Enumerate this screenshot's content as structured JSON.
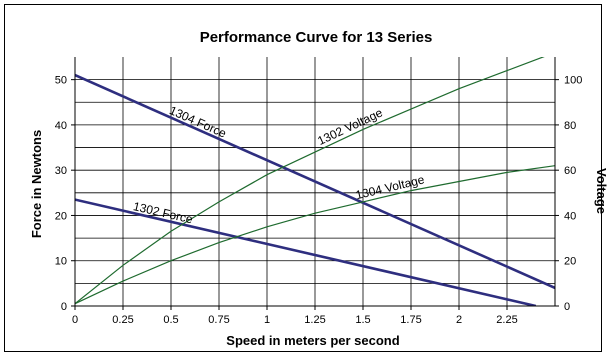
{
  "chart_data": {
    "type": "line",
    "title": "Performance Curve for 13 Series",
    "xlabel": "Speed in meters per second",
    "ylabel": "Force in Newtons",
    "y2label": "Voltage",
    "xlim": [
      0,
      2.5
    ],
    "ylim": [
      0,
      55
    ],
    "y2lim": [
      0,
      110
    ],
    "x_ticks": [
      "0",
      "0.25",
      "0.5",
      "0.75",
      "1",
      "1.25",
      "1.5",
      "1.75",
      "2",
      "2.25"
    ],
    "y_ticks": [
      "0",
      "10",
      "20",
      "30",
      "40",
      "50"
    ],
    "y2_ticks": [
      "0",
      "20",
      "40",
      "60",
      "80",
      "100"
    ],
    "grid": true,
    "legend": "none",
    "colors": {
      "force": "#2e2e7f",
      "voltage": "#1f6b2f",
      "grid": "#000000"
    },
    "series": [
      {
        "name": "1304 Force",
        "axis": "left",
        "x": [
          0,
          2.5
        ],
        "y": [
          51,
          4
        ]
      },
      {
        "name": "1302 Force",
        "axis": "left",
        "x": [
          0,
          2.4
        ],
        "y": [
          23.5,
          0
        ]
      },
      {
        "name": "1302 Voltage",
        "axis": "right",
        "x": [
          0,
          0.25,
          0.5,
          0.75,
          1,
          1.25,
          1.5,
          1.75,
          2,
          2.25,
          2.5
        ],
        "y": [
          1,
          18,
          33,
          46,
          58,
          68,
          78,
          87,
          96,
          104,
          112
        ]
      },
      {
        "name": "1304 Voltage",
        "axis": "right",
        "x": [
          0,
          0.25,
          0.5,
          0.75,
          1,
          1.25,
          1.5,
          1.75,
          2,
          2.25,
          2.5
        ],
        "y": [
          1,
          11,
          20,
          28,
          35,
          41,
          46,
          51,
          55,
          59,
          62
        ]
      }
    ],
    "annotations": [
      {
        "text": "1304 Force",
        "series": 0
      },
      {
        "text": "1302 Force",
        "series": 1
      },
      {
        "text": "1302 Voltage",
        "series": 2
      },
      {
        "text": "1304 Voltage",
        "series": 3
      }
    ]
  }
}
